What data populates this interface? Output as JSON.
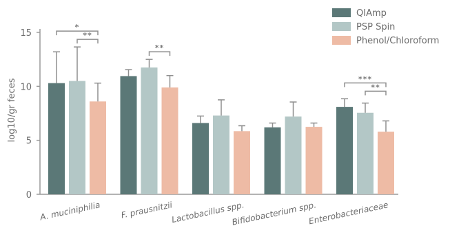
{
  "chart_data": {
    "type": "bar",
    "ylabel": "log10/gr feces",
    "xlabel": "",
    "title": "",
    "ylim": [
      0,
      15
    ],
    "yticks": [
      "0",
      "5",
      "10",
      "15"
    ],
    "categories": [
      "A. muciniphilia",
      "F. prausnitzii",
      "Lactobacillus spp.",
      "Bifidobacterium spp.",
      "Enterobacteriaceae"
    ],
    "series": [
      {
        "name": "QIAmp",
        "color": "#5b7877",
        "values": [
          10.3,
          10.95,
          6.6,
          6.2,
          8.1
        ],
        "errors": [
          2.9,
          0.6,
          0.65,
          0.4,
          0.75
        ]
      },
      {
        "name": "PSP Spin",
        "color": "#b3c7c6",
        "values": [
          10.5,
          11.75,
          7.3,
          7.2,
          7.55
        ],
        "errors": [
          3.15,
          0.75,
          1.45,
          1.35,
          0.9
        ]
      },
      {
        "name": "Phenol/Chloroform",
        "color": "#eebba5",
        "values": [
          8.6,
          9.9,
          5.85,
          6.25,
          5.8
        ],
        "errors": [
          1.7,
          1.1,
          0.5,
          0.35,
          1.0
        ]
      }
    ],
    "significance": [
      {
        "category": 0,
        "from": 0,
        "to": 2,
        "label": "*"
      },
      {
        "category": 0,
        "from": 1,
        "to": 2,
        "label": "**"
      },
      {
        "category": 1,
        "from": 1,
        "to": 2,
        "label": "**"
      },
      {
        "category": 4,
        "from": 0,
        "to": 2,
        "label": "***"
      },
      {
        "category": 4,
        "from": 1,
        "to": 2,
        "label": "**"
      }
    ],
    "legend_position": "top-right",
    "grid": false
  }
}
